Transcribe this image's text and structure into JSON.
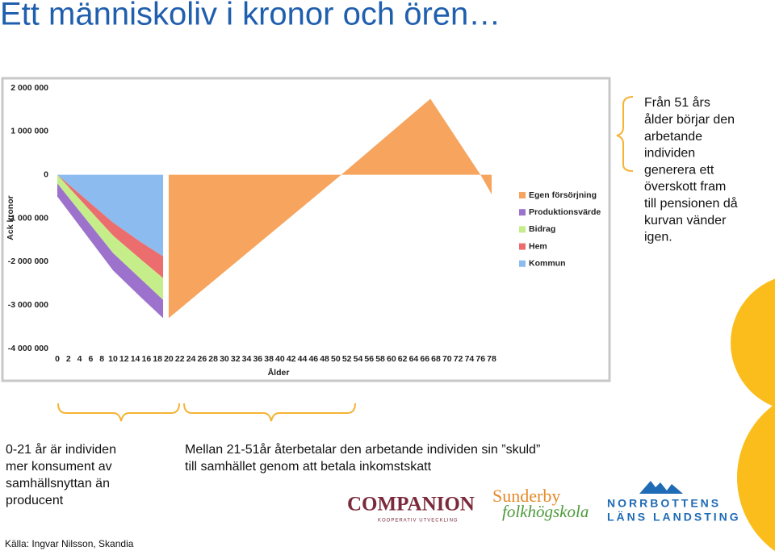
{
  "title": "Ett människoliv i kronor och ören…",
  "chart_data": {
    "type": "area",
    "stacked": true,
    "y_label": "Ack kronor",
    "x_label": "Ålder",
    "x": [
      0,
      5,
      10,
      15,
      19,
      20,
      51,
      67,
      76,
      78
    ],
    "series": [
      {
        "name": "Egen försörjning",
        "color": "#f6a45e",
        "values": [
          null,
          null,
          null,
          null,
          null,
          -3300000,
          0,
          1750000,
          0,
          -450000
        ]
      },
      {
        "name": "Produktionsvärde",
        "color": "#9d72cc",
        "values": [
          -300000,
          -350000,
          -400000,
          -420000,
          -420000,
          null,
          null,
          null,
          null,
          null
        ]
      },
      {
        "name": "Bidrag",
        "color": "#c5ee8a",
        "values": [
          -200000,
          -300000,
          -400000,
          -450000,
          -500000,
          null,
          null,
          null,
          null,
          null
        ]
      },
      {
        "name": "Hem",
        "color": "#ec6d6d",
        "values": [
          0,
          -150000,
          -300000,
          -400000,
          -500000,
          null,
          null,
          null,
          null,
          null
        ]
      },
      {
        "name": "Kommun",
        "color": "#8cbcef",
        "values": [
          0,
          -550000,
          -1100000,
          -1550000,
          -1880000,
          null,
          null,
          null,
          null,
          null
        ]
      }
    ],
    "xlim": [
      0,
      78
    ],
    "ylim": [
      -4000000,
      2000000
    ],
    "xticks": [
      0,
      2,
      4,
      6,
      8,
      10,
      12,
      14,
      16,
      18,
      20,
      22,
      24,
      26,
      28,
      30,
      32,
      34,
      36,
      38,
      40,
      42,
      44,
      46,
      48,
      50,
      52,
      54,
      56,
      58,
      60,
      62,
      64,
      66,
      68,
      70,
      72,
      74,
      76,
      78
    ],
    "yticks": [
      {
        "value": 2000000,
        "label": "2 000 000"
      },
      {
        "value": 1000000,
        "label": "1 000 000"
      },
      0,
      {
        "value": -1000000,
        "label": "-1 000 000"
      },
      {
        "value": -2000000,
        "label": "-2 000 000"
      },
      {
        "value": -3000000,
        "label": "-3 000 000"
      },
      {
        "value": -4000000,
        "label": "-4 000 000"
      }
    ],
    "grid": false,
    "legend": "right"
  },
  "side_note": [
    "Från 51 års",
    "ålder börjar den",
    "arbetande",
    "individen",
    "generera ett",
    "överskott fram",
    "till pensionen då",
    "kurvan vänder",
    "igen."
  ],
  "childhood_note": [
    "0-21 år är individen",
    "mer konsument av",
    "samhällsnyttan än",
    "producent"
  ],
  "working_note": [
    "Mellan 21-51år återbetalar den arbetande individen sin ”skuld”",
    "till samhället genom att betala inkomstskatt"
  ],
  "logos": {
    "companion": "COMPANION",
    "companion_sub": "KOOPERATIV UTVECKLING",
    "sunderby": "Sunderby",
    "folkhogskola": "folkhögskola",
    "norrbotten": "NORRBOTTENS",
    "landsting": "LÄNS LANDSTING"
  },
  "source": "Källa: Ingvar Nilsson, Skandia"
}
